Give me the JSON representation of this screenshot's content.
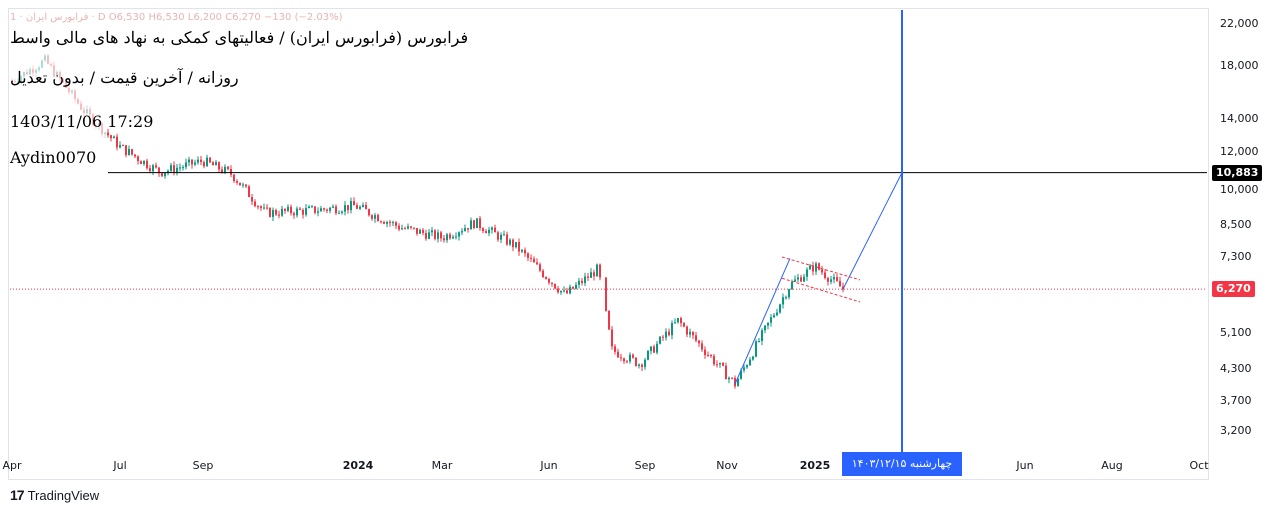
{
  "chart_data": {
    "type": "candlestick",
    "title": "فرابورس (فرابورس ایران) / فعالیتهای کمکی به نهاد های مالی واسط",
    "subtitle": "روزانه / آخرین قیمت / بدون تعدیل",
    "timestamp": "1403/11/06 17:29",
    "author": "Aydin0070",
    "ohlc_legend": "فرابورس ایران · 1 · D  O6,530  H6,530  L6,200  C6,270  −130 (−2.03%)",
    "y_scale": "log",
    "ylim": [
      2900,
      23500
    ],
    "y_ticks": [
      "22,000",
      "18,000",
      "14,000",
      "12,000",
      "10,000",
      "8,500",
      "7,300",
      "5,100",
      "4,300",
      "3,700",
      "3,200"
    ],
    "y_tick_values": [
      22000,
      18000,
      14000,
      12000,
      10000,
      8500,
      7300,
      5100,
      4300,
      3700,
      3200
    ],
    "x_ticks": [
      {
        "label": "Apr",
        "bold": false
      },
      {
        "label": "Jul",
        "bold": false
      },
      {
        "label": "Sep",
        "bold": false
      },
      {
        "label": "2024",
        "bold": true
      },
      {
        "label": "Mar",
        "bold": false
      },
      {
        "label": "Jun",
        "bold": false
      },
      {
        "label": "Sep",
        "bold": false
      },
      {
        "label": "Nov",
        "bold": false
      },
      {
        "label": "2025",
        "bold": true
      },
      {
        "label": "Jun",
        "bold": false
      },
      {
        "label": "Aug",
        "bold": false
      },
      {
        "label": "Oct",
        "bold": false
      }
    ],
    "series": [
      {
        "name": "price",
        "points": [
          [
            "2023-04",
            16800
          ],
          [
            "2023-05",
            18500
          ],
          [
            "2023-06",
            14500
          ],
          [
            "2023-07",
            12300
          ],
          [
            "2023-08",
            10900
          ],
          [
            "2023-09",
            11500
          ],
          [
            "2023-10",
            10800
          ],
          [
            "2023-11",
            9000
          ],
          [
            "2023-12",
            9100
          ],
          [
            "2024-01",
            9300
          ],
          [
            "2024-02",
            8400
          ],
          [
            "2024-03",
            8000
          ],
          [
            "2024-04",
            8600
          ],
          [
            "2024-05",
            7700
          ],
          [
            "2024-06",
            6100
          ],
          [
            "2024-07",
            6900
          ],
          [
            "2024-08",
            4700
          ],
          [
            "2024-09",
            4400
          ],
          [
            "2024-10",
            5400
          ],
          [
            "2024-11",
            4000
          ],
          [
            "2024-12",
            6400
          ],
          [
            "2025-01",
            7000
          ],
          [
            "2025-02",
            6270
          ]
        ]
      }
    ],
    "horizontal_line": {
      "value": 10883,
      "label": "10,883",
      "color": "#000000"
    },
    "last_price": {
      "value": 6270,
      "label": "6,270",
      "color": "#f23645"
    },
    "projection": {
      "from": [
        "2025-02",
        6270
      ],
      "to": [
        "2025-03",
        10883
      ],
      "color": "#2962ff"
    },
    "vertical_marker": {
      "label": "چهارشنبه ۱۴۰۳/۱۲/۱۵",
      "color": "#2962ff"
    },
    "channel": {
      "color": "#f23645"
    },
    "grid": false,
    "legend": "none"
  },
  "footer": {
    "brand": "TradingView"
  },
  "colors": {
    "up": "#089981",
    "down": "#f23645",
    "accent": "#2962ff"
  }
}
